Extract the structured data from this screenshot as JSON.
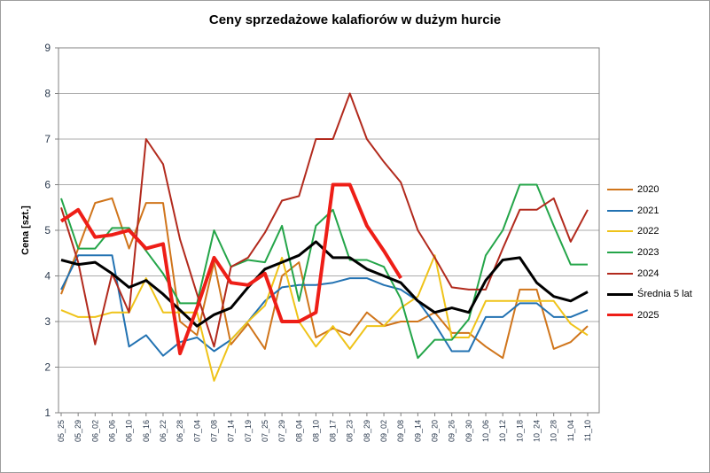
{
  "colors": {
    "background": "#FFFFFF",
    "frame_border": "#9E9E9E",
    "gridline": "#ABABAB",
    "axis": "#808080",
    "tick_label": "#2B3A4E"
  },
  "chart_data": {
    "type": "line",
    "title": "Ceny sprzedażowe kalafiorów w dużym hurcie",
    "xlabel": "",
    "ylabel": "Cena [szt.]",
    "ylim": [
      1,
      9
    ],
    "yticks": [
      1,
      2,
      3,
      4,
      5,
      6,
      7,
      8,
      9
    ],
    "grid": true,
    "legend_position": "right",
    "categories": [
      "05_25",
      "05_29",
      "06_02",
      "06_06",
      "06_10",
      "06_16",
      "06_22",
      "06_28",
      "07_04",
      "07_08",
      "07_14",
      "07_19",
      "07_25",
      "07_29",
      "08_04",
      "08_10",
      "08_17",
      "08_23",
      "08_29",
      "09_02",
      "09_08",
      "09_14",
      "09_20",
      "09_26",
      "09_30",
      "10_06",
      "10_12",
      "10_18",
      "10_24",
      "10_28",
      "11_04",
      "11_10"
    ],
    "series": [
      {
        "name": "2020",
        "color": "#D0751B",
        "width": 2,
        "values": [
          3.6,
          4.6,
          5.6,
          5.7,
          4.6,
          5.6,
          5.6,
          3.0,
          2.7,
          4.3,
          2.5,
          2.95,
          2.4,
          4.0,
          4.3,
          2.65,
          2.85,
          2.7,
          3.2,
          2.9,
          3.0,
          3.0,
          3.2,
          2.75,
          2.75,
          2.45,
          2.2,
          3.7,
          3.7,
          2.4,
          2.55,
          2.9
        ]
      },
      {
        "name": "2021",
        "color": "#2272B2",
        "width": 2,
        "values": [
          3.7,
          4.45,
          4.45,
          4.45,
          2.45,
          2.7,
          2.25,
          2.55,
          2.65,
          2.35,
          2.6,
          3.0,
          3.45,
          3.75,
          3.8,
          3.8,
          3.85,
          3.95,
          3.95,
          3.8,
          3.7,
          3.45,
          2.95,
          2.35,
          2.35,
          3.1,
          3.1,
          3.4,
          3.4,
          3.1,
          3.1,
          3.25
        ]
      },
      {
        "name": "2022",
        "color": "#EFC319",
        "width": 2,
        "values": [
          3.25,
          3.1,
          3.1,
          3.2,
          3.2,
          3.95,
          3.2,
          3.2,
          3.2,
          1.7,
          2.6,
          3.0,
          3.35,
          4.4,
          3.0,
          2.45,
          2.9,
          2.4,
          2.9,
          2.9,
          3.3,
          3.55,
          4.45,
          2.65,
          2.65,
          3.45,
          3.45,
          3.45,
          3.45,
          3.45,
          2.95,
          2.7
        ]
      },
      {
        "name": "2023",
        "color": "#24A549",
        "width": 2,
        "values": [
          5.7,
          4.6,
          4.6,
          5.05,
          5.05,
          4.55,
          4.05,
          3.4,
          3.4,
          5.0,
          4.2,
          4.35,
          4.3,
          5.1,
          3.45,
          5.1,
          5.45,
          4.35,
          4.35,
          4.2,
          3.5,
          2.2,
          2.6,
          2.6,
          3.05,
          4.45,
          5.0,
          6.0,
          6.0,
          5.1,
          4.25,
          4.25
        ]
      },
      {
        "name": "2024",
        "color": "#B22A1D",
        "width": 2,
        "values": [
          5.5,
          4.3,
          2.5,
          4.05,
          3.2,
          7.0,
          6.45,
          4.8,
          3.6,
          2.45,
          4.2,
          4.4,
          4.95,
          5.65,
          5.75,
          7.0,
          7.0,
          8.0,
          7.0,
          6.5,
          6.05,
          5.0,
          4.4,
          3.75,
          3.7,
          3.7,
          4.6,
          5.45,
          5.45,
          5.7,
          4.75,
          5.45
        ]
      },
      {
        "name": "Średnia 5 lat",
        "color": "#000000",
        "width": 3,
        "values": [
          4.35,
          4.25,
          4.3,
          4.05,
          3.75,
          3.9,
          3.6,
          3.25,
          2.9,
          3.15,
          3.3,
          3.75,
          4.15,
          4.3,
          4.45,
          4.75,
          4.4,
          4.4,
          4.15,
          4.0,
          3.85,
          3.45,
          3.2,
          3.3,
          3.2,
          3.9,
          4.35,
          4.4,
          3.85,
          3.55,
          3.45,
          3.65
        ]
      },
      {
        "name": "2025",
        "color": "#EE1E17",
        "width": 4,
        "values": [
          5.2,
          5.45,
          4.85,
          4.9,
          5.0,
          4.6,
          4.7,
          2.3,
          3.3,
          4.4,
          3.85,
          3.8,
          4.05,
          3.0,
          3.0,
          3.2,
          6.0,
          6.0,
          5.1,
          4.55,
          3.95,
          null,
          null,
          null,
          null,
          null,
          null,
          null,
          null,
          null,
          null,
          null
        ]
      }
    ]
  }
}
